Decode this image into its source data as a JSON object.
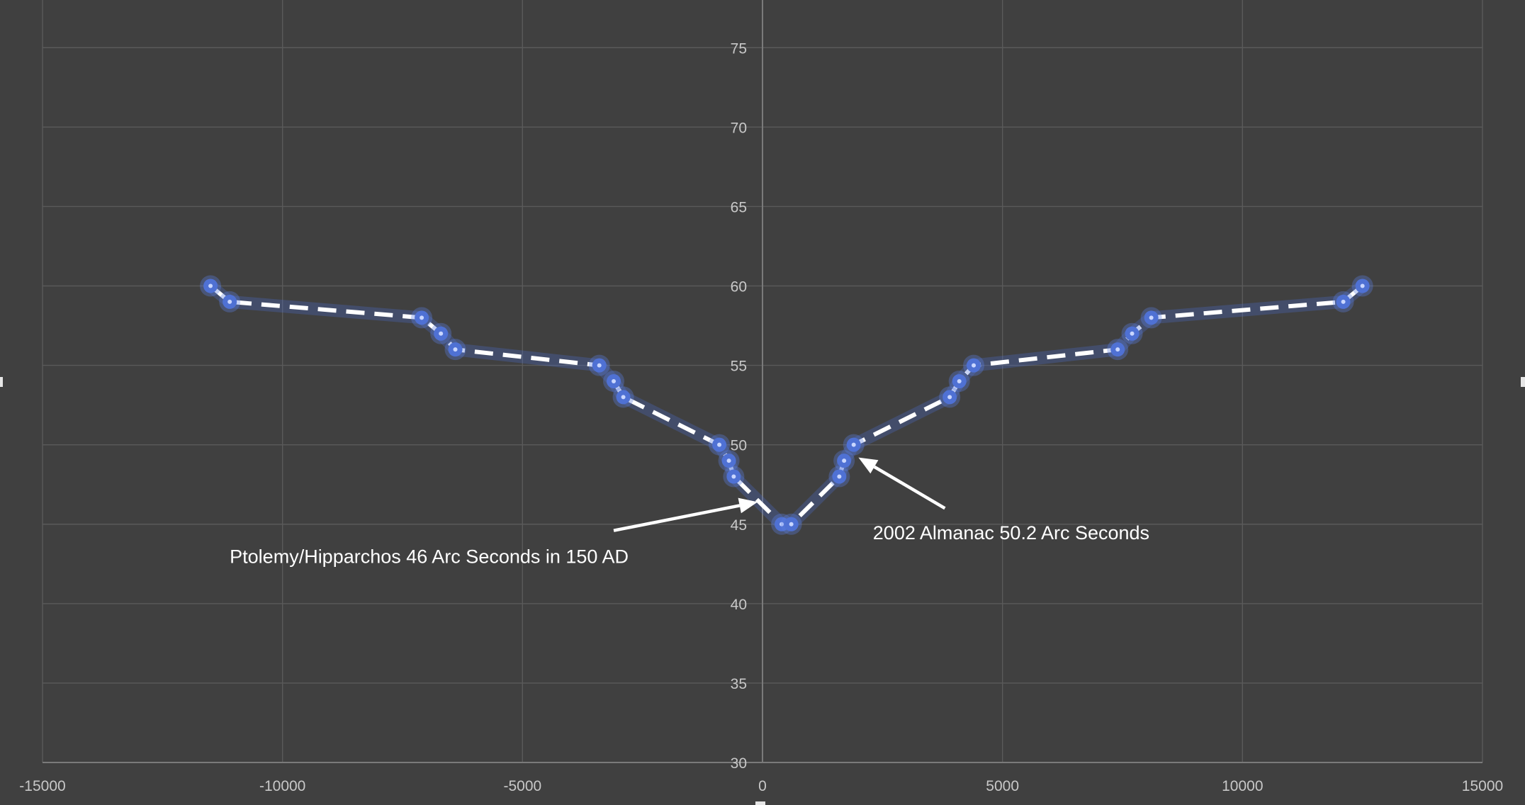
{
  "colors": {
    "background": "#404040",
    "gridline": "#5a5a5a",
    "axis": "#7a7a7a",
    "series_line": "#ffffff",
    "marker": "#4f71d4",
    "text": "#ffffff"
  },
  "chart_data": {
    "type": "scatter",
    "title": "",
    "xlabel": "",
    "ylabel": "",
    "xlim": [
      -15000,
      15000
    ],
    "ylim": [
      30,
      78
    ],
    "x_ticks": [
      -15000,
      -10000,
      -5000,
      0,
      5000,
      10000,
      15000
    ],
    "y_ticks": [
      30,
      35,
      40,
      45,
      50,
      55,
      60,
      65,
      70,
      75
    ],
    "grid": true,
    "legend": "none",
    "line_style": "dashed",
    "series": [
      {
        "points": [
          {
            "x": -11500,
            "y": 60
          },
          {
            "x": -11100,
            "y": 59
          },
          {
            "x": -7100,
            "y": 58
          },
          {
            "x": -6700,
            "y": 57
          },
          {
            "x": -6400,
            "y": 56
          },
          {
            "x": -3400,
            "y": 55
          },
          {
            "x": -3100,
            "y": 54
          },
          {
            "x": -2900,
            "y": 53
          },
          {
            "x": -900,
            "y": 50
          },
          {
            "x": -700,
            "y": 49
          },
          {
            "x": -600,
            "y": 48
          },
          {
            "x": 400,
            "y": 45
          },
          {
            "x": 600,
            "y": 45
          },
          {
            "x": 1600,
            "y": 48
          },
          {
            "x": 1700,
            "y": 49
          },
          {
            "x": 1900,
            "y": 50
          },
          {
            "x": 3900,
            "y": 53
          },
          {
            "x": 4100,
            "y": 54
          },
          {
            "x": 4400,
            "y": 55
          },
          {
            "x": 7400,
            "y": 56
          },
          {
            "x": 7700,
            "y": 57
          },
          {
            "x": 8100,
            "y": 58
          },
          {
            "x": 12100,
            "y": 59
          },
          {
            "x": 12500,
            "y": 60
          }
        ]
      }
    ],
    "annotations": [
      {
        "text": "Ptolemy/Hipparchos 46 Arc Seconds in 150 AD",
        "label_at": {
          "x": -11100,
          "y": 43
        },
        "arrow_from": {
          "x": -3100,
          "y": 44.6
        },
        "arrow_to": {
          "x": -100,
          "y": 46.4
        }
      },
      {
        "text": "2002 Almanac 50.2 Arc Seconds",
        "label_at": {
          "x": 2300,
          "y": 44.5
        },
        "arrow_from": {
          "x": 3800,
          "y": 46
        },
        "arrow_to": {
          "x": 2000,
          "y": 49.2
        }
      }
    ]
  }
}
